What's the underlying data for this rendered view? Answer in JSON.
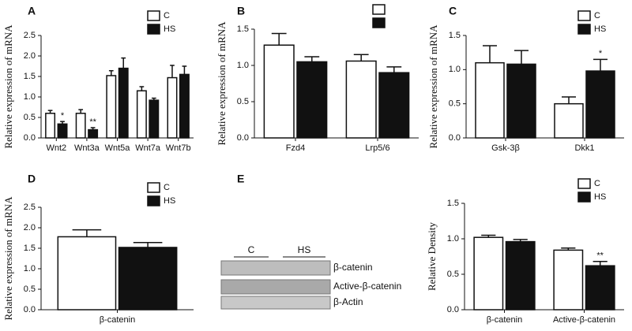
{
  "chart_data": [
    {
      "type": "bar",
      "panel": "A",
      "ylabel": "Relative expression of mRNA",
      "categories": [
        "Wnt2",
        "Wnt3a",
        "Wnt5a",
        "Wnt7a",
        "Wnt7b"
      ],
      "series": [
        {
          "name": "C",
          "color": "#ffffff",
          "values": [
            0.6,
            0.6,
            1.52,
            1.15,
            1.47
          ],
          "errors": [
            0.07,
            0.09,
            0.12,
            0.1,
            0.3
          ]
        },
        {
          "name": "HS",
          "color": "#111111",
          "values": [
            0.34,
            0.2,
            1.7,
            0.92,
            1.55
          ],
          "errors": [
            0.06,
            0.05,
            0.25,
            0.05,
            0.2
          ],
          "annotations": [
            "*",
            "**",
            null,
            null,
            null
          ]
        }
      ],
      "ylim": [
        0,
        2.5
      ],
      "yticks": [
        {
          "value": 0,
          "label": "0.0"
        },
        0.5,
        {
          "value": 1,
          "label": "1.0"
        },
        1.5,
        {
          "value": 2,
          "label": "2.0"
        },
        2.5
      ],
      "legend": "upper right"
    },
    {
      "type": "bar",
      "panel": "B",
      "ylabel": "Relative expression of mRNA",
      "categories": [
        "Fzd4",
        "Lrp5/6"
      ],
      "series": [
        {
          "color": "#ffffff",
          "values": [
            1.28,
            1.06
          ],
          "errors": [
            0.16,
            0.09
          ]
        },
        {
          "color": "#111111",
          "values": [
            1.05,
            0.9
          ],
          "errors": [
            0.07,
            0.08
          ]
        }
      ],
      "ylim": [
        0,
        1.5
      ],
      "yticks": [
        {
          "value": 0,
          "label": "0.0"
        },
        0.5,
        {
          "value": 1,
          "label": "1.0"
        },
        1.5
      ],
      "legend": "upper right"
    },
    {
      "type": "bar",
      "panel": "C",
      "ylabel": "Relative expression of mRNA",
      "categories": [
        "Gsk-3β",
        "Dkk1"
      ],
      "series": [
        {
          "name": "C",
          "color": "#ffffff",
          "values": [
            1.1,
            0.5
          ],
          "errors": [
            0.25,
            0.1
          ]
        },
        {
          "name": "HS",
          "color": "#111111",
          "values": [
            1.08,
            0.98
          ],
          "errors": [
            0.2,
            0.17
          ],
          "annotations": [
            null,
            "*"
          ]
        }
      ],
      "ylim": [
        0,
        1.5
      ],
      "yticks": [
        {
          "value": 0,
          "label": "0.0"
        },
        0.5,
        {
          "value": 1,
          "label": "1.0"
        },
        1.5
      ],
      "legend": "upper right"
    },
    {
      "type": "bar",
      "panel": "D",
      "ylabel": "Relative expression of mRNA",
      "categories": [
        "β-catenin"
      ],
      "series": [
        {
          "name": "C",
          "color": "#ffffff",
          "values": [
            1.78
          ],
          "errors": [
            0.17
          ]
        },
        {
          "name": "HS",
          "color": "#111111",
          "values": [
            1.52
          ],
          "errors": [
            0.12
          ]
        }
      ],
      "ylim": [
        0,
        2.5
      ],
      "yticks": [
        {
          "value": 0,
          "label": "0.0"
        },
        0.5,
        {
          "value": 1,
          "label": "1.0"
        },
        1.5,
        {
          "value": 2,
          "label": "2.0"
        },
        2.5
      ],
      "legend": "upper right"
    },
    {
      "type": "bar",
      "ylabel": "Relative Density",
      "categories": [
        "β-catenin",
        "Active-β-catenin"
      ],
      "series": [
        {
          "name": "C",
          "color": "#ffffff",
          "values": [
            1.02,
            0.84
          ],
          "errors": [
            0.03,
            0.03
          ]
        },
        {
          "name": "HS",
          "color": "#111111",
          "values": [
            0.96,
            0.62
          ],
          "errors": [
            0.03,
            0.06
          ],
          "annotations": [
            null,
            "**"
          ]
        }
      ],
      "ylim": [
        0,
        1.5
      ],
      "yticks": [
        {
          "value": 0,
          "label": "0.0"
        },
        0.5,
        {
          "value": 1,
          "label": "1.0"
        },
        1.5
      ],
      "legend": "upper right"
    }
  ],
  "blot": {
    "panel": "E",
    "groups": [
      "C",
      "HS"
    ],
    "bands": [
      "β-catenin",
      "Active-β-catenin",
      "β-Actin"
    ]
  }
}
